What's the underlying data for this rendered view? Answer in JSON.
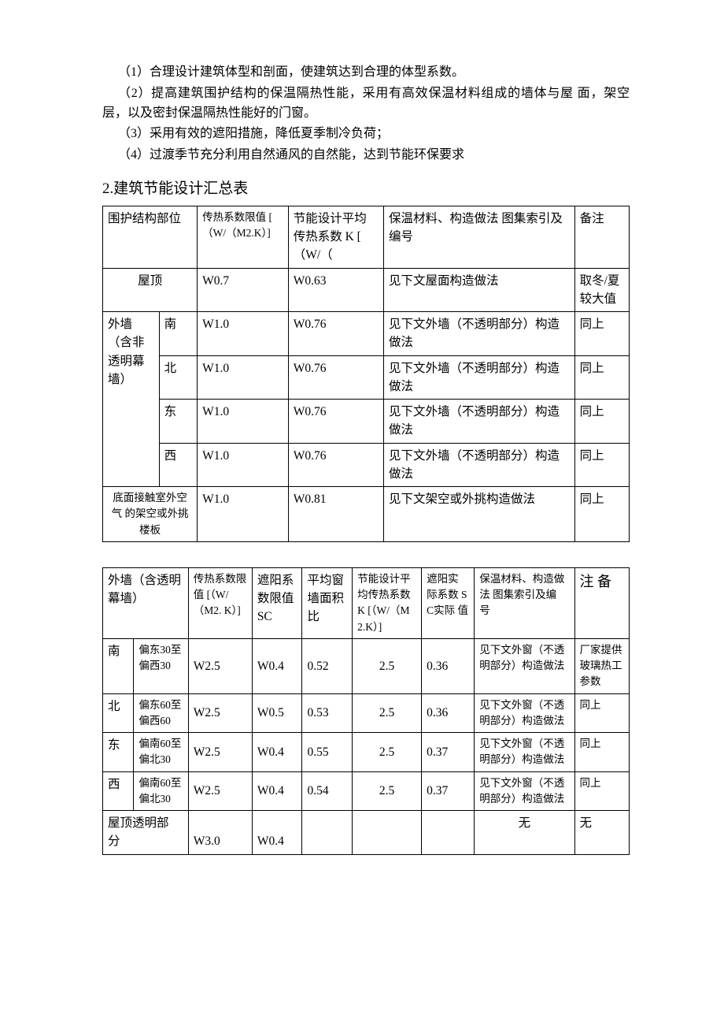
{
  "paragraphs": {
    "p1": "（1）合理设计建筑体型和剖面，使建筑达到合理的体型系数。",
    "p2": "（2）提高建筑围护结构的保温隔热性能，采用有高效保温材料组成的墙体与屋 面，架空层，以及密封保温隔热性能好的门窗。",
    "p3": "（3）采用有效的遮阳措施，降低夏季制冷负荷；",
    "p4": "（4）过渡季节充分利用自然通风的自然能，达到节能环保要求"
  },
  "heading": "2.建筑节能设计汇总表",
  "table1": {
    "header": {
      "c1": "围护结构部位",
      "c2": "传热系数限值 [ （W/（M2.K）]",
      "c3": "节能设计平均传热系数\nK [ （W/（",
      "c4": "保温材料、构造做法 图集索引及编号",
      "c5": "备注"
    },
    "rows": [
      {
        "c1": "屋顶",
        "c2": "W0.7",
        "c3": "W0.63",
        "c4": "见下文屋面构造做法",
        "c5": "取冬/夏较大值"
      },
      {
        "g1": "外墙（含非透明幕墙）",
        "c1b": "南",
        "c2": "W1.0",
        "c3": "W0.76",
        "c4": "见下文外墙（不透明部分）构造做法",
        "c5": "同上"
      },
      {
        "c1b": "北",
        "c2": "W1.0",
        "c3": "W0.76",
        "c4": "见下文外墙（不透明部分）构造做法",
        "c5": "同上"
      },
      {
        "c1b": "东",
        "c2": "W1.0",
        "c3": "W0.76",
        "c4": "见下文外墙（不透明部分）构造做法",
        "c5": "同上"
      },
      {
        "c1b": "西",
        "c2": "W1.0",
        "c3": "W0.76",
        "c4": "见下文外墙（不透明部分）构造做法",
        "c5": "同上"
      },
      {
        "c1": "底面接触室外空气 的架空或外挑楼板",
        "c2": "W1.0",
        "c3": "W0.81",
        "c4": "见下文架空或外挑构造做法",
        "c5": "同上"
      }
    ]
  },
  "table2": {
    "header": {
      "c1": "外墙（含透明幕墙）",
      "c2": "传热系数限值  [（W/（M2. K）]",
      "c3": "遮阳系数限值 SC",
      "c4": "平均窗墙面积比",
      "c5": "节能设计平 均传热系数 K [（W/（M2.K）]",
      "c6": "遮阳实 际系数 SC实际 值",
      "c7": "保温材料、构造做法 图集索引及编 号",
      "c8": "注 备"
    },
    "rows": [
      {
        "d": "南",
        "r": "偏东30至偏西30",
        "c2": "W2.5",
        "c3": "W0.4",
        "c4": "0.52",
        "c5": "2.5",
        "c6": "0.36",
        "c7": "见下文外窗（不透明部分）构造做法",
        "c8": "厂家提供玻璃热工参数"
      },
      {
        "d": "北",
        "r": "偏东60至偏西60",
        "c2": "W2.5",
        "c3": "W0.5",
        "c4": "0.53",
        "c5": "2.5",
        "c6": "0.36",
        "c7": "见下文外窗（不透明部分）构造做法",
        "c8": "同上"
      },
      {
        "d": "东",
        "r": "偏南60至偏北30",
        "c2": "W2.5",
        "c3": "W0.4",
        "c4": "0.55",
        "c5": "2.5",
        "c6": "0.37",
        "c7": "见下文外窗（不透明部分）构造做法",
        "c8": "同上"
      },
      {
        "d": "西",
        "r": "偏南60至偏北30",
        "c2": "W2.5",
        "c3": "W0.4",
        "c4": "0.54",
        "c5": "2.5",
        "c6": "0.37",
        "c7": "见下文外窗（不透明部分）构造做法",
        "c8": "同上"
      },
      {
        "d": "屋顶透明部 分",
        "r": "",
        "c2": "W3.0",
        "c3": "W0.4",
        "c4": "",
        "c5": "",
        "c6": "",
        "c7": "无",
        "c8": "无"
      }
    ]
  }
}
